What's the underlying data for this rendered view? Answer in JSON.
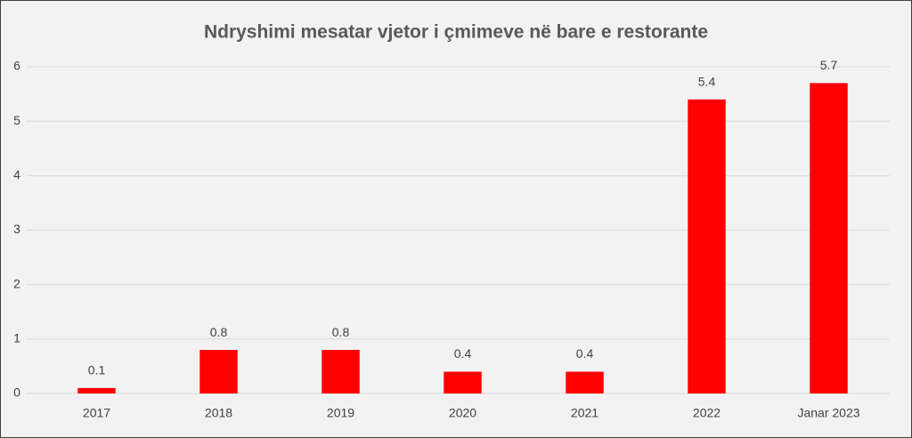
{
  "chart_data": {
    "type": "bar",
    "title": "Ndryshimi mesatar vjetor i çmimeve në bare e restorante",
    "categories": [
      "2017",
      "2018",
      "2019",
      "2020",
      "2021",
      "2022",
      "Janar 2023"
    ],
    "values": [
      0.1,
      0.8,
      0.8,
      0.4,
      0.4,
      5.4,
      5.7
    ],
    "color": "#ff0000",
    "ylim": [
      0,
      6
    ],
    "yticks": [
      0,
      1,
      2,
      3,
      4,
      5,
      6
    ],
    "grid": true
  }
}
